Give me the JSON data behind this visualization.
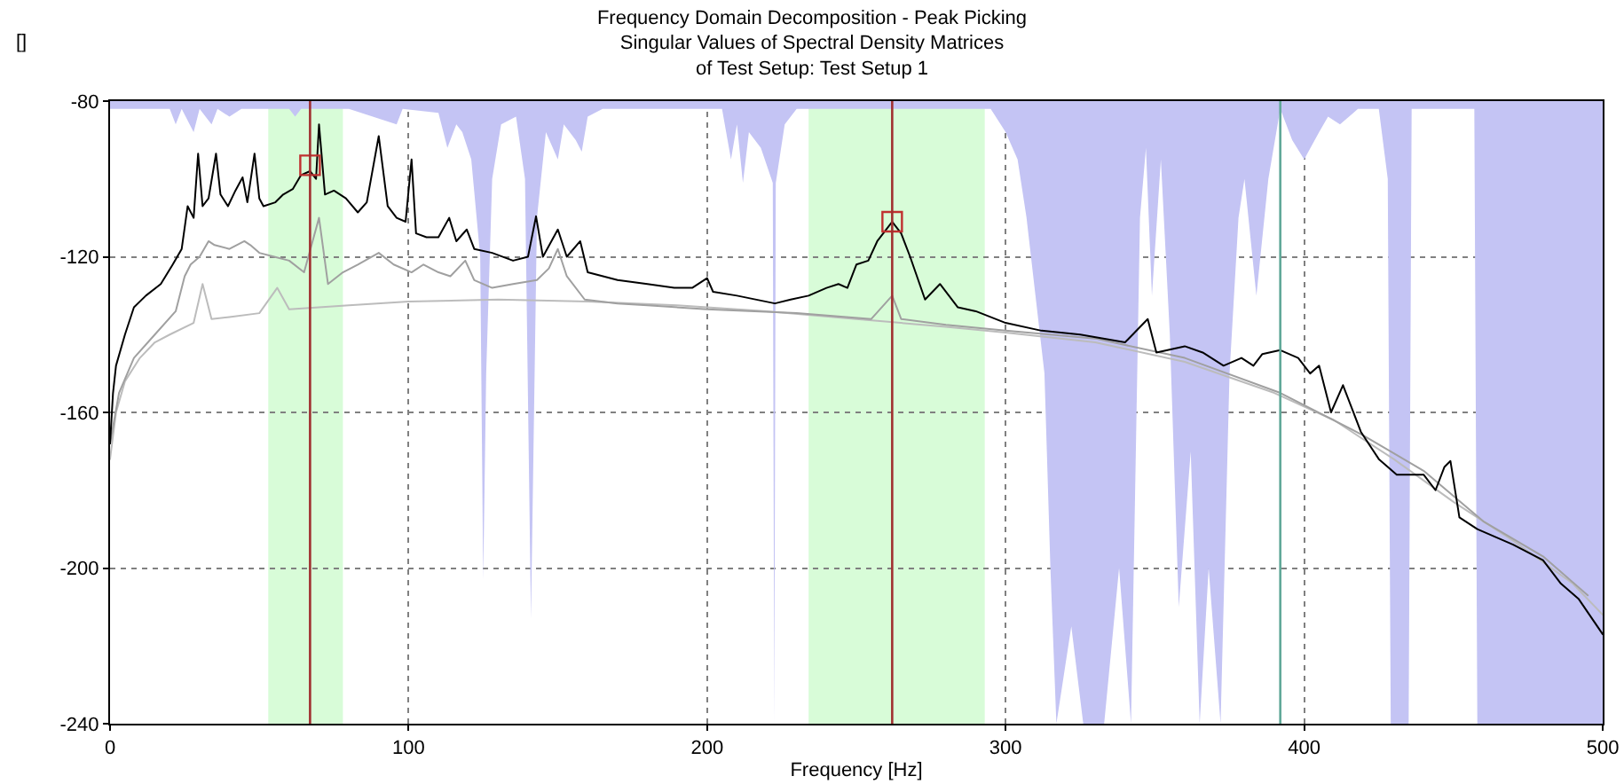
{
  "chart_data": {
    "type": "line",
    "title": "Frequency Domain Decomposition - Peak Picking\nSingular Values of Spectral Density Matrices\nof Test Setup: Test Setup 1",
    "xlabel": "Frequency [Hz]",
    "ylabel": "[]",
    "xlim": [
      0,
      500
    ],
    "xticks": [
      0,
      100,
      200,
      300,
      400,
      500
    ],
    "ylim": [
      -240,
      -80
    ],
    "yticks": [
      -240,
      -200,
      -160,
      -120,
      -80
    ],
    "grid": true,
    "series": [
      {
        "type": "area",
        "color": "#c4c4f4",
        "x": [
          0,
          20,
          22,
          24,
          28,
          30,
          34,
          36,
          40,
          44,
          60,
          62,
          64,
          80,
          96,
          98,
          110,
          113,
          116,
          118,
          121,
          124,
          125,
          126,
          128,
          131,
          136,
          139,
          141,
          143,
          146,
          150,
          152,
          156,
          158,
          160,
          165,
          205,
          208,
          210,
          212,
          214,
          218,
          222,
          222.5,
          223,
          226,
          230,
          295,
          300,
          304,
          307,
          310,
          313,
          315,
          317,
          322,
          326,
          333,
          338,
          342,
          345,
          347,
          349,
          352,
          355,
          358,
          362,
          365,
          368,
          372,
          375,
          378,
          380,
          384,
          388,
          392,
          396,
          400,
          405,
          408,
          412,
          418,
          425,
          428,
          429,
          435,
          436,
          457,
          458,
          500
        ],
        "values": [
          -82,
          -82,
          -86,
          -82,
          -88,
          -82,
          -86,
          -82,
          -84,
          -82,
          -82,
          -84,
          -82,
          -82,
          -86,
          -82,
          -83,
          -92,
          -86,
          -88,
          -95,
          -120,
          -203,
          -150,
          -100,
          -86,
          -84,
          -100,
          -213,
          -110,
          -88,
          -95,
          -86,
          -90,
          -93,
          -84,
          -82,
          -82,
          -95,
          -86,
          -101,
          -88,
          -92,
          -101,
          -240,
          -101,
          -86,
          -82,
          -82,
          -88,
          -95,
          -110,
          -130,
          -150,
          -200,
          -240,
          -215,
          -240,
          -240,
          -200,
          -240,
          -110,
          -92,
          -130,
          -95,
          -140,
          -210,
          -170,
          -240,
          -200,
          -240,
          -150,
          -110,
          -100,
          -130,
          -100,
          -82,
          -90,
          -95,
          -88,
          -84,
          -86,
          -82,
          -82,
          -100,
          -240,
          -240,
          -82,
          -82,
          -240,
          -240
        ]
      },
      {
        "color": "#bcbcbc",
        "x": [
          0,
          2,
          5,
          10,
          15,
          20,
          28,
          31,
          34,
          40,
          50,
          56,
          60,
          80,
          100,
          130,
          160,
          190,
          220,
          250,
          280,
          300,
          330,
          360,
          390,
          410,
          430,
          450,
          470,
          490,
          500
        ],
        "values": [
          -172,
          -160,
          -152,
          -146,
          -142,
          -140,
          -137,
          -127,
          -136,
          -135.5,
          -134.5,
          -128,
          -133.5,
          -132.5,
          -131.5,
          -131,
          -131.5,
          -132.5,
          -134,
          -136,
          -138,
          -139.5,
          -142,
          -147,
          -155,
          -162,
          -172,
          -183,
          -193,
          -204,
          -212
        ]
      },
      {
        "color": "#a0a0a0",
        "x": [
          0,
          3,
          8,
          15,
          22,
          25,
          27,
          30,
          33,
          35,
          40,
          45,
          47,
          50,
          55,
          60,
          65,
          70,
          73,
          78,
          83,
          90,
          95,
          101,
          105,
          110,
          114,
          119,
          122,
          128,
          135,
          143,
          147,
          150,
          153,
          159,
          170,
          180,
          200,
          230,
          255,
          262,
          265,
          280,
          300,
          330,
          360,
          392,
          420,
          440,
          460,
          480,
          495
        ],
        "values": [
          -168,
          -155,
          -146,
          -140,
          -134,
          -125,
          -122,
          -120,
          -116,
          -117,
          -118,
          -116,
          -117,
          -119,
          -120,
          -121,
          -124,
          -110,
          -127,
          -124,
          -122,
          -119,
          -122,
          -124,
          -122,
          -124,
          -125,
          -121,
          -126,
          -128,
          -127,
          -126,
          -123,
          -118,
          -125,
          -131,
          -132,
          -132.5,
          -133.5,
          -134.5,
          -136,
          -130,
          -136,
          -137.5,
          -139,
          -141,
          -146,
          -155,
          -166,
          -175,
          -188,
          -197,
          -207
        ]
      },
      {
        "color": "#000000",
        "x": [
          0,
          1,
          2,
          5,
          8,
          12,
          17,
          21,
          24,
          26,
          28,
          29.5,
          31,
          33,
          35.5,
          37,
          39.5,
          42,
          44.4,
          46,
          48.4,
          50,
          51.4,
          55.4,
          58,
          61.2,
          64,
          67,
          69,
          70,
          72,
          75,
          79,
          83,
          86,
          90,
          93,
          96,
          99,
          101,
          102.5,
          106,
          110,
          113.6,
          116,
          119.5,
          122,
          128,
          135,
          140,
          142.7,
          145,
          150,
          153,
          157.5,
          160,
          170,
          180,
          189,
          195,
          200,
          202,
          210,
          222.7,
          228,
          234,
          240,
          244,
          247,
          250,
          254,
          257,
          262,
          265,
          268,
          273,
          278,
          284,
          290,
          300,
          312,
          325,
          340,
          347.6,
          350.5,
          360,
          366,
          373,
          379,
          383,
          386,
          392,
          398,
          402,
          405,
          409,
          413,
          419,
          425,
          431,
          440,
          444,
          447,
          449,
          452,
          458,
          470,
          480,
          486,
          492,
          500
        ],
        "values": [
          -168,
          -155,
          -148,
          -140,
          -133,
          -130,
          -127,
          -122,
          -118,
          -107,
          -110,
          -93.5,
          -107,
          -105,
          -93.5,
          -104,
          -107,
          -103,
          -99.6,
          -106,
          -93.5,
          -105,
          -107,
          -106,
          -104,
          -102.6,
          -99,
          -98,
          -100,
          -86,
          -104,
          -103,
          -105,
          -108.6,
          -106,
          -89,
          -107,
          -110,
          -111,
          -95,
          -114,
          -115,
          -115,
          -110,
          -116,
          -113,
          -118,
          -119,
          -121,
          -120,
          -109.6,
          -120,
          -113,
          -120,
          -116,
          -124,
          -126,
          -127,
          -128,
          -128,
          -125.5,
          -129,
          -130,
          -132,
          -131,
          -130,
          -128,
          -127,
          -128,
          -122,
          -121,
          -116,
          -111,
          -114,
          -120,
          -131,
          -127,
          -133,
          -134,
          -137,
          -139,
          -140,
          -142,
          -136,
          -144.6,
          -143,
          -144.6,
          -148,
          -146,
          -148,
          -145,
          -144,
          -146,
          -150,
          -148,
          -160,
          -153,
          -165,
          -172,
          -176,
          -176,
          -180,
          -174,
          -172.5,
          -187,
          -190,
          -194,
          -198,
          -204,
          -208,
          -217
        ]
      },
      {
        "type": "scatter",
        "color": "#c03030",
        "marker": "square",
        "x": [
          67,
          262
        ],
        "values": [
          -96.5,
          -111
        ]
      }
    ],
    "bands": [
      {
        "axis": "x",
        "from": 53,
        "to": 78,
        "color": "#d8fcd8"
      },
      {
        "axis": "x",
        "from": 234,
        "to": 293,
        "color": "#d8fcd8"
      }
    ],
    "ref_lines": [
      {
        "axis": "x",
        "value": 67,
        "color": "#a03030"
      },
      {
        "axis": "x",
        "value": 262,
        "color": "#a03030"
      },
      {
        "axis": "x",
        "value": 392,
        "color": "#60a898"
      }
    ]
  }
}
